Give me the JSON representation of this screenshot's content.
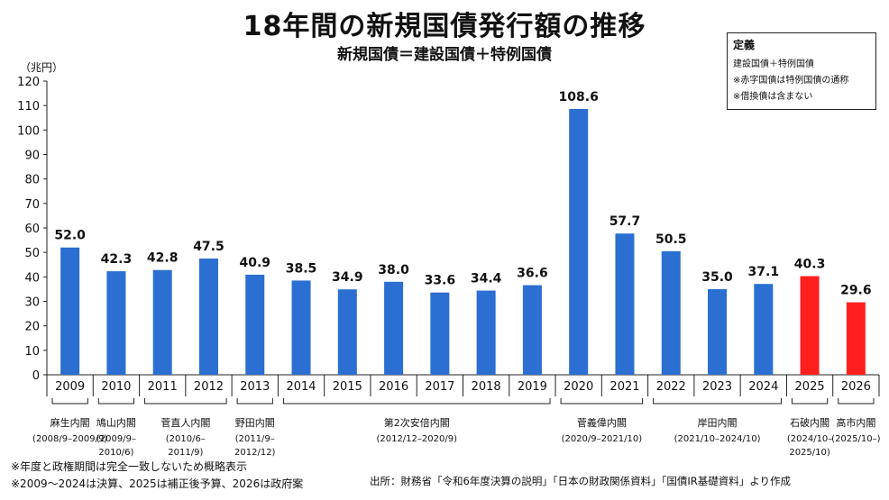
{
  "title": "18年間の新規国債発行額の推移",
  "subtitle": "新規国債＝建設国債＋特例国債",
  "unit_label": "（兆円）",
  "definition_box": {
    "title": "定義",
    "lines": [
      "建設国債＋特例国債",
      "※赤字国債は特例国債の通称",
      "※借換債は含まない"
    ]
  },
  "notes": [
    "※年度と政権期間は完全一致しないため概略表示",
    "※2009～2024は決算、2025は補正後予算、2026は政府案"
  ],
  "source": "出所：財務省「令和6年度決算の説明」「日本の財政関係資料」「国債IR基礎資料」より作成",
  "colors": {
    "bar": "#2a6fd1",
    "highlight": "#ff1f1f",
    "axis": "#222222"
  },
  "chart_data": {
    "type": "bar",
    "categories": [
      "2009",
      "2010",
      "2011",
      "2012",
      "2013",
      "2014",
      "2015",
      "2016",
      "2017",
      "2018",
      "2019",
      "2020",
      "2021",
      "2022",
      "2023",
      "2024",
      "2025",
      "2026"
    ],
    "values": [
      52.0,
      42.3,
      42.8,
      47.5,
      40.9,
      38.5,
      34.9,
      38.0,
      33.6,
      34.4,
      36.6,
      108.6,
      57.7,
      50.5,
      35.0,
      37.1,
      40.3,
      29.6
    ],
    "value_labels": [
      "52.0",
      "42.3",
      "42.8",
      "47.5",
      "40.9",
      "38.5",
      "34.9",
      "38.0",
      "33.6",
      "34.4",
      "36.6",
      "108.6",
      "57.7",
      "50.5",
      "35.0",
      "37.1",
      "40.3",
      "29.6"
    ],
    "highlight_categories": [
      "2025",
      "2026"
    ],
    "ylim": [
      0,
      120
    ],
    "yticks": [
      0,
      10,
      20,
      30,
      40,
      50,
      60,
      70,
      80,
      90,
      100,
      110,
      120
    ],
    "grid": false,
    "cabinets": [
      {
        "name": "麻生内閣",
        "period": [
          "(2008/9–2009/9)"
        ],
        "start": 0,
        "end": 0
      },
      {
        "name": "鳩山内閣",
        "period": [
          "(2009/9–",
          "2010/6)"
        ],
        "start": 1,
        "end": 1
      },
      {
        "name": "菅直人内閣",
        "period": [
          "(2010/6–",
          "2011/9)"
        ],
        "start": 2,
        "end": 3
      },
      {
        "name": "野田内閣",
        "period": [
          "(2011/9–",
          "2012/12)"
        ],
        "start": 4,
        "end": 4
      },
      {
        "name": "第2次安倍内閣",
        "period": [
          "(2012/12–2020/9)"
        ],
        "start": 5,
        "end": 10
      },
      {
        "name": "菅義偉内閣",
        "period": [
          "(2020/9–2021/10)"
        ],
        "start": 11,
        "end": 12
      },
      {
        "name": "岸田内閣",
        "period": [
          "(2021/10–2024/10)"
        ],
        "start": 13,
        "end": 15
      },
      {
        "name": "石破内閣",
        "period": [
          "(2024/10–",
          "2025/10)"
        ],
        "start": 16,
        "end": 16
      },
      {
        "name": "高市内閣",
        "period": [
          "(2025/10–)"
        ],
        "start": 17,
        "end": 17
      }
    ]
  }
}
